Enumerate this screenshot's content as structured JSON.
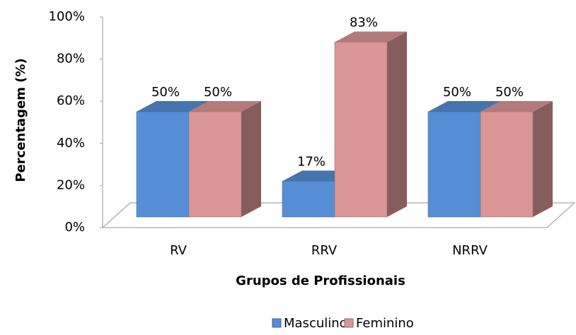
{
  "chart_data": {
    "type": "bar3d",
    "x_label": "Grupos de Profissionais",
    "y_label": "Percentagem (%)",
    "categories": [
      "RV",
      "RRV",
      "NRRV"
    ],
    "series": [
      {
        "name": "Masculino",
        "color": "#558ed5",
        "values": [
          50,
          17,
          50
        ],
        "value_labels": [
          "50%",
          "17%",
          "50%"
        ]
      },
      {
        "name": "Feminino",
        "color": "#d99694",
        "values": [
          50,
          83,
          50
        ],
        "value_labels": [
          "50%",
          "83%",
          "50%"
        ]
      }
    ],
    "ylim": [
      0,
      100
    ],
    "yticks": [
      {
        "value": 0,
        "label": "0%"
      },
      {
        "value": 20,
        "label": "20%"
      },
      {
        "value": 40,
        "label": "40%"
      },
      {
        "value": 60,
        "label": "60%"
      },
      {
        "value": 80,
        "label": "80%"
      },
      {
        "value": 100,
        "label": "100%"
      }
    ],
    "legend": "bottom"
  }
}
